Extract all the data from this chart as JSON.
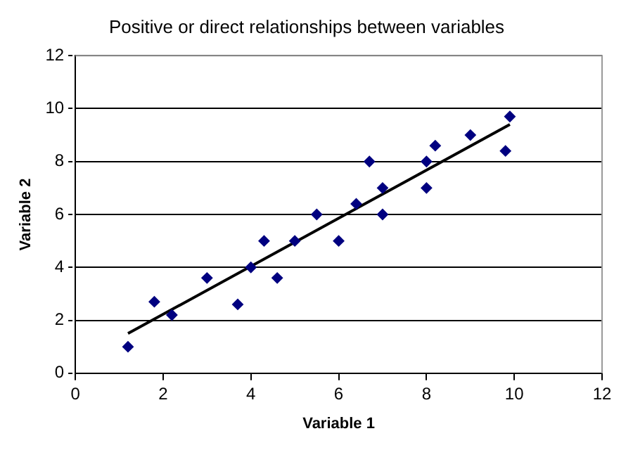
{
  "chart_data": {
    "type": "scatter",
    "title": "Positive or direct relationships between variables",
    "xlabel": "Variable 1",
    "ylabel": "Variable 2",
    "xlim": [
      0,
      12
    ],
    "xticks": [
      0,
      2,
      4,
      6,
      8,
      10,
      12
    ],
    "ylim": [
      0,
      12
    ],
    "yticks": [
      0,
      2,
      4,
      6,
      8,
      10,
      12
    ],
    "grid": "y",
    "marker": "diamond",
    "legend": false,
    "series": [
      {
        "color": "#000080",
        "x": [
          1.2,
          1.8,
          2.2,
          3.0,
          3.7,
          4.0,
          4.3,
          4.6,
          5.0,
          5.5,
          6.0,
          6.4,
          6.7,
          7.0,
          7.0,
          8.0,
          8.0,
          8.2,
          9.0,
          9.8,
          9.9
        ],
        "values": [
          1.0,
          2.7,
          2.2,
          3.6,
          2.6,
          4.0,
          5.0,
          3.6,
          5.0,
          6.0,
          5.0,
          6.4,
          8.0,
          7.0,
          6.0,
          8.0,
          7.0,
          8.6,
          9.0,
          8.4,
          9.7
        ]
      },
      {
        "type": "line",
        "color": "#000000",
        "marker": "none",
        "x": [
          1.2,
          9.9
        ],
        "values": [
          1.5,
          9.4
        ]
      }
    ]
  }
}
